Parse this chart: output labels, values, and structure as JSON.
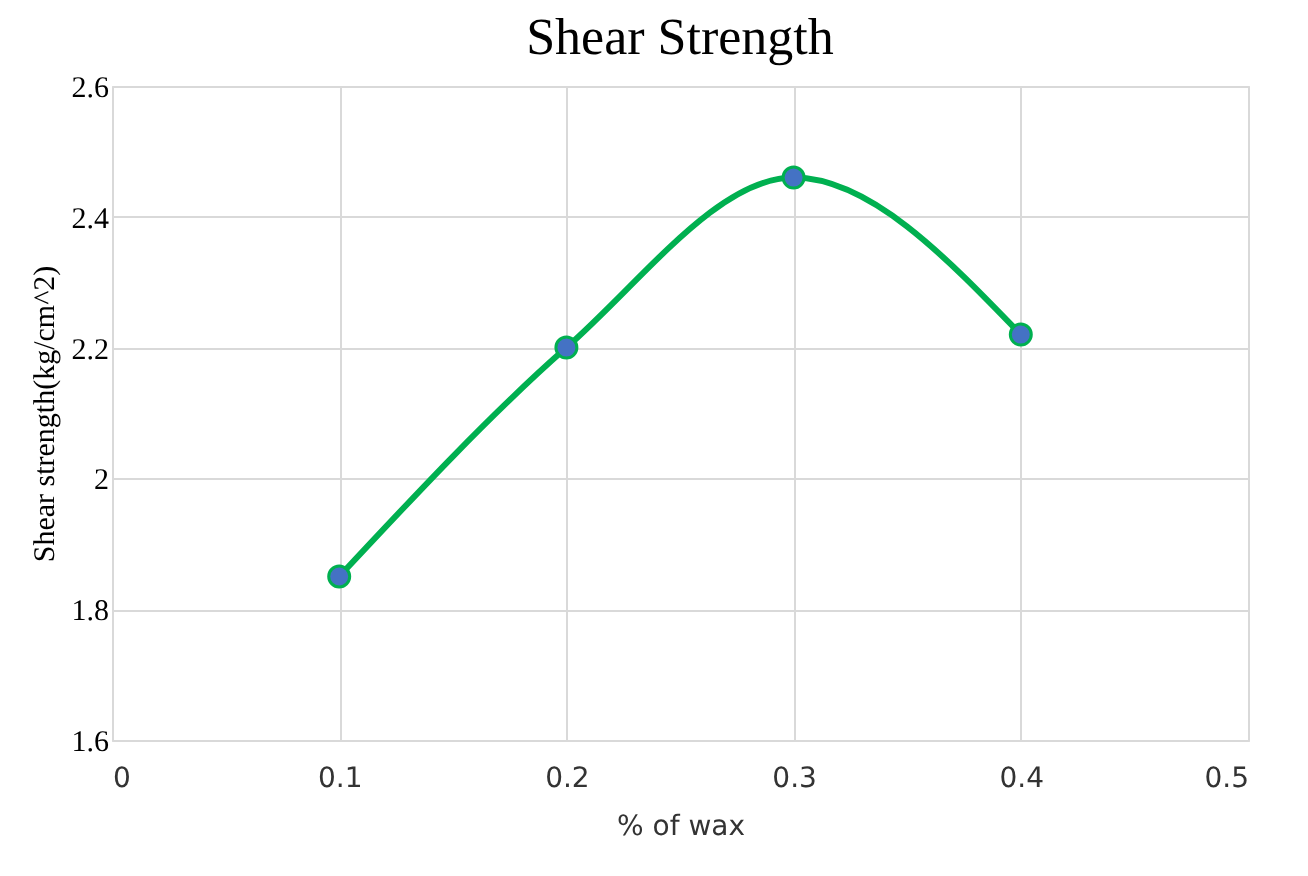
{
  "chart_data": {
    "type": "line",
    "title": "Shear Strength",
    "xlabel": "% of wax",
    "ylabel": "Shear strength(kg/cm^2)",
    "x": [
      0.1,
      0.2,
      0.3,
      0.4
    ],
    "series": [
      {
        "color": "#00b050",
        "values": [
          1.85,
          2.2,
          2.46,
          2.22
        ]
      }
    ],
    "xlim": [
      0,
      0.5
    ],
    "xticks": [
      0,
      0.1,
      0.2,
      0.3,
      0.4,
      0.5
    ],
    "ylim": [
      1.6,
      2.6
    ],
    "yticks": [
      1.6,
      1.8,
      2,
      2.2,
      2.4,
      2.6
    ],
    "grid": true,
    "marker": "circle",
    "line_style": "solid"
  }
}
